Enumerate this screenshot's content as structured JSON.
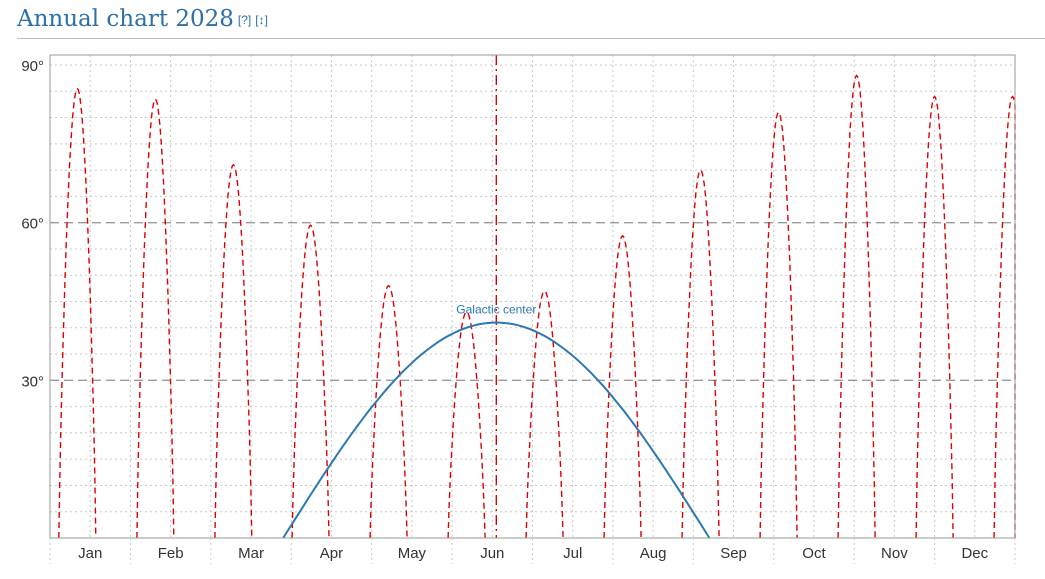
{
  "header": {
    "title": "Annual chart 2028",
    "help_link": "[?]",
    "download_link": "[↕]"
  },
  "chart_data": {
    "type": "line",
    "xlabel": "",
    "ylabel": "",
    "x_range": [
      0,
      12
    ],
    "ylim": [
      0,
      90
    ],
    "month_labels": [
      "Jan",
      "Feb",
      "Mar",
      "Apr",
      "May",
      "Jun",
      "Jul",
      "Aug",
      "Sep",
      "Oct",
      "Nov",
      "Dec"
    ],
    "y_ticks": [
      {
        "value": 90,
        "label": "90°"
      },
      {
        "value": 60,
        "label": "60°"
      },
      {
        "value": 30,
        "label": "30°"
      }
    ],
    "major_gridlines_y": [
      60,
      30
    ],
    "grid": true,
    "vertical_marker": {
      "x": 5.55,
      "color": "#dd0000",
      "style": "dash-dot"
    },
    "series": [
      {
        "name": "",
        "color": "#dd0000",
        "style": "dashed",
        "half_width": 0.23,
        "peaks": [
          {
            "x": 0.34,
            "y": 85.5
          },
          {
            "x": 1.31,
            "y": 83.5
          },
          {
            "x": 2.28,
            "y": 71
          },
          {
            "x": 3.24,
            "y": 59.5
          },
          {
            "x": 4.21,
            "y": 48
          },
          {
            "x": 5.18,
            "y": 43
          },
          {
            "x": 6.15,
            "y": 47
          },
          {
            "x": 7.12,
            "y": 57.5
          },
          {
            "x": 8.09,
            "y": 70
          },
          {
            "x": 9.06,
            "y": 81
          },
          {
            "x": 10.03,
            "y": 88
          },
          {
            "x": 11.0,
            "y": 84
          },
          {
            "x": 11.97,
            "y": 84
          }
        ]
      },
      {
        "name": "Galactic center",
        "color": "#2c78b0",
        "style": "solid",
        "peak": {
          "x": 5.55,
          "y": 41
        },
        "rise_x": 2.9,
        "set_x": 8.2
      }
    ]
  }
}
